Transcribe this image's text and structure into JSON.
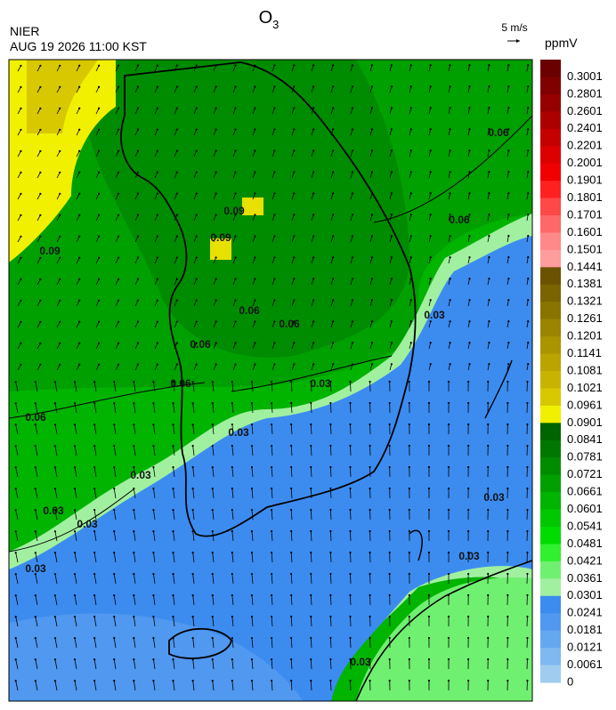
{
  "header": {
    "title": "O",
    "title_sub": "3",
    "agency": "NIER",
    "timestamp": "AUG 19 2026 11:00 KST",
    "vector_scale": "5 m/s",
    "unit": "ppmV"
  },
  "colorbar": {
    "labels": [
      "0.3001",
      "0.2801",
      "0.2601",
      "0.2401",
      "0.2201",
      "0.2001",
      "0.1901",
      "0.1801",
      "0.1701",
      "0.1601",
      "0.1501",
      "0.1441",
      "0.1381",
      "0.1321",
      "0.1261",
      "0.1201",
      "0.1141",
      "0.1081",
      "0.1021",
      "0.0961",
      "0.0901",
      "0.0841",
      "0.0781",
      "0.0721",
      "0.0661",
      "0.0601",
      "0.0541",
      "0.0481",
      "0.0421",
      "0.0361",
      "0.0301",
      "0.0241",
      "0.0181",
      "0.0121",
      "0.0061",
      "0"
    ],
    "colors": [
      "#6b0000",
      "#800000",
      "#960000",
      "#ac0000",
      "#c40000",
      "#dc0000",
      "#f00000",
      "#ff2020",
      "#ff4848",
      "#ff6868",
      "#ff8888",
      "#ff9c9c",
      "#6b5200",
      "#7a6400",
      "#8a7400",
      "#9a8400",
      "#aa9400",
      "#baa400",
      "#c8b400",
      "#d8c800",
      "#f0f000",
      "#006400",
      "#007800",
      "#008c00",
      "#00a000",
      "#00b400",
      "#00c800",
      "#00dc00",
      "#30f030",
      "#70f070",
      "#a0f0a0",
      "#3c8cf0",
      "#5098f0",
      "#64a8f0",
      "#80b8f0",
      "#a0ccf0"
    ]
  },
  "contour_labels": [
    "0.09",
    "0.09",
    "0.09",
    "0.06",
    "0.06",
    "0.06",
    "0.06",
    "0.06",
    "0.06",
    "0.06",
    "0.03",
    "0.03",
    "0.03",
    "0.03",
    "0.03",
    "0.03",
    "0.03",
    "0.03",
    "0.03",
    "0.03"
  ]
}
